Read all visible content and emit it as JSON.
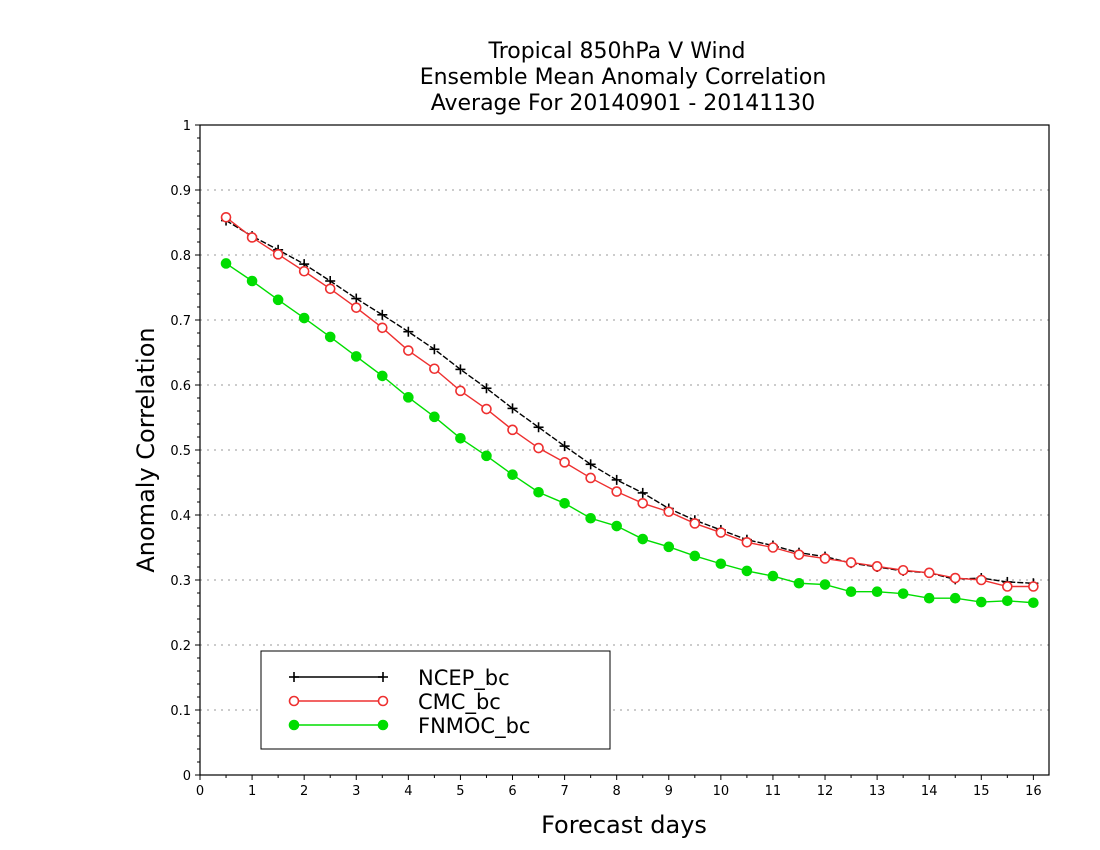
{
  "chart_data": {
    "type": "line",
    "title_lines": [
      "Tropical 850hPa V Wind",
      "Ensemble Mean Anomaly Correlation",
      "Average For 20140901 - 20141130"
    ],
    "xlabel": "Forecast days",
    "ylabel": "Anomaly Correlation",
    "xlim": [
      0,
      16.3
    ],
    "ylim": [
      0,
      1
    ],
    "xticks": [
      0,
      1,
      2,
      3,
      4,
      5,
      6,
      7,
      8,
      9,
      10,
      11,
      12,
      13,
      14,
      15,
      16
    ],
    "xtick_labels": [
      "0",
      "1",
      "2",
      "3",
      "4",
      "5",
      "6",
      "7",
      "8",
      "9",
      "10",
      "11",
      "12",
      "13",
      "14",
      "15",
      "16"
    ],
    "yticks": [
      0,
      0.1,
      0.2,
      0.3,
      0.4,
      0.5,
      0.6,
      0.7,
      0.8,
      0.9,
      1
    ],
    "ytick_labels": [
      "0",
      "0.1",
      "0.2",
      "0.3",
      "0.4",
      "0.5",
      "0.6",
      "0.7",
      "0.8",
      "0.9",
      "1"
    ],
    "grid": true,
    "legend_position": "bottom-left",
    "x": [
      0.5,
      1,
      1.5,
      2,
      2.5,
      3,
      3.5,
      4,
      4.5,
      5,
      5.5,
      6,
      6.5,
      7,
      7.5,
      8,
      8.5,
      9,
      9.5,
      10,
      10.5,
      11,
      11.5,
      12,
      12.5,
      13,
      13.5,
      14,
      14.5,
      15,
      15.5,
      16
    ],
    "series": [
      {
        "name": "NCEP_bc",
        "color": "#000000",
        "marker": "plus",
        "values": [
          0.853,
          0.829,
          0.808,
          0.786,
          0.76,
          0.733,
          0.708,
          0.682,
          0.655,
          0.624,
          0.595,
          0.564,
          0.535,
          0.506,
          0.478,
          0.454,
          0.434,
          0.41,
          0.392,
          0.377,
          0.362,
          0.353,
          0.342,
          0.336,
          0.326,
          0.32,
          0.314,
          0.311,
          0.301,
          0.303,
          0.297,
          0.295
        ]
      },
      {
        "name": "CMC_bc",
        "color": "#ee3030",
        "marker": "open-circle",
        "values": [
          0.858,
          0.827,
          0.801,
          0.775,
          0.748,
          0.719,
          0.688,
          0.653,
          0.625,
          0.591,
          0.563,
          0.531,
          0.503,
          0.481,
          0.457,
          0.436,
          0.418,
          0.405,
          0.387,
          0.373,
          0.358,
          0.35,
          0.339,
          0.333,
          0.327,
          0.321,
          0.315,
          0.311,
          0.303,
          0.3,
          0.29,
          0.29
        ]
      },
      {
        "name": "FNMOC_bc",
        "color": "#00dd00",
        "marker": "filled-circle",
        "values": [
          0.787,
          0.76,
          0.731,
          0.703,
          0.674,
          0.644,
          0.614,
          0.581,
          0.551,
          0.518,
          0.491,
          0.462,
          0.435,
          0.418,
          0.395,
          0.383,
          0.363,
          0.351,
          0.337,
          0.325,
          0.314,
          0.306,
          0.295,
          0.293,
          0.282,
          0.282,
          0.279,
          0.272,
          0.272,
          0.266,
          0.268,
          0.265
        ]
      }
    ]
  }
}
